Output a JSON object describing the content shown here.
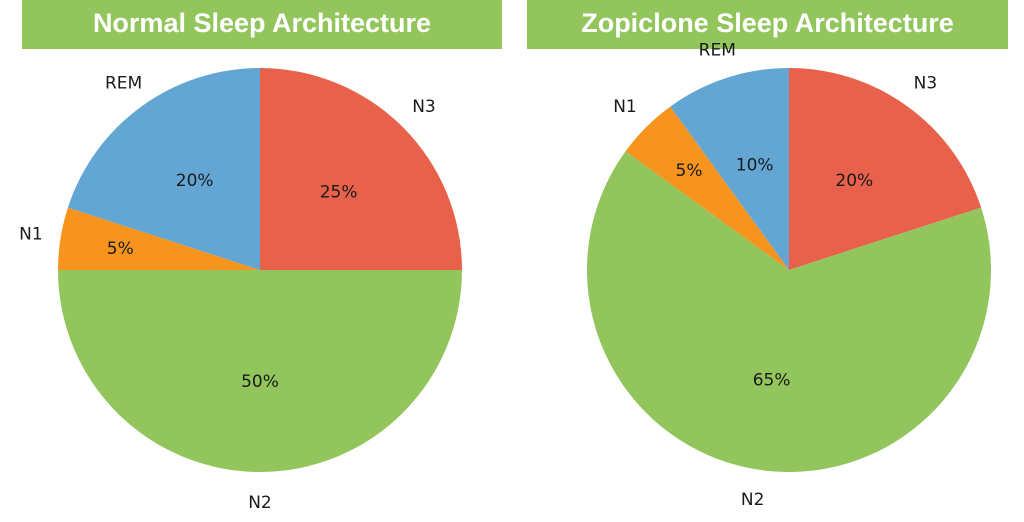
{
  "chart_data": [
    {
      "type": "pie",
      "title": "Normal Sleep Architecture",
      "slices": [
        {
          "label": "N3",
          "value": 25,
          "value_label": "25%",
          "color": "#e8624b"
        },
        {
          "label": "N2",
          "value": 50,
          "value_label": "50%",
          "color": "#92c65c"
        },
        {
          "label": "N1",
          "value": 5,
          "value_label": "5%",
          "color": "#f6941e"
        },
        {
          "label": "REM",
          "value": 20,
          "value_label": "20%",
          "color": "#63a6d4"
        }
      ]
    },
    {
      "type": "pie",
      "title": "Zopiclone Sleep Architecture",
      "slices": [
        {
          "label": "N3",
          "value": 20,
          "value_label": "20%",
          "color": "#e8624b"
        },
        {
          "label": "N2",
          "value": 65,
          "value_label": "65%",
          "color": "#92c65c"
        },
        {
          "label": "N1",
          "value": 5,
          "value_label": "5%",
          "color": "#f6941e"
        },
        {
          "label": "REM",
          "value": 10,
          "value_label": "10%",
          "color": "#63a6d4"
        }
      ]
    }
  ]
}
